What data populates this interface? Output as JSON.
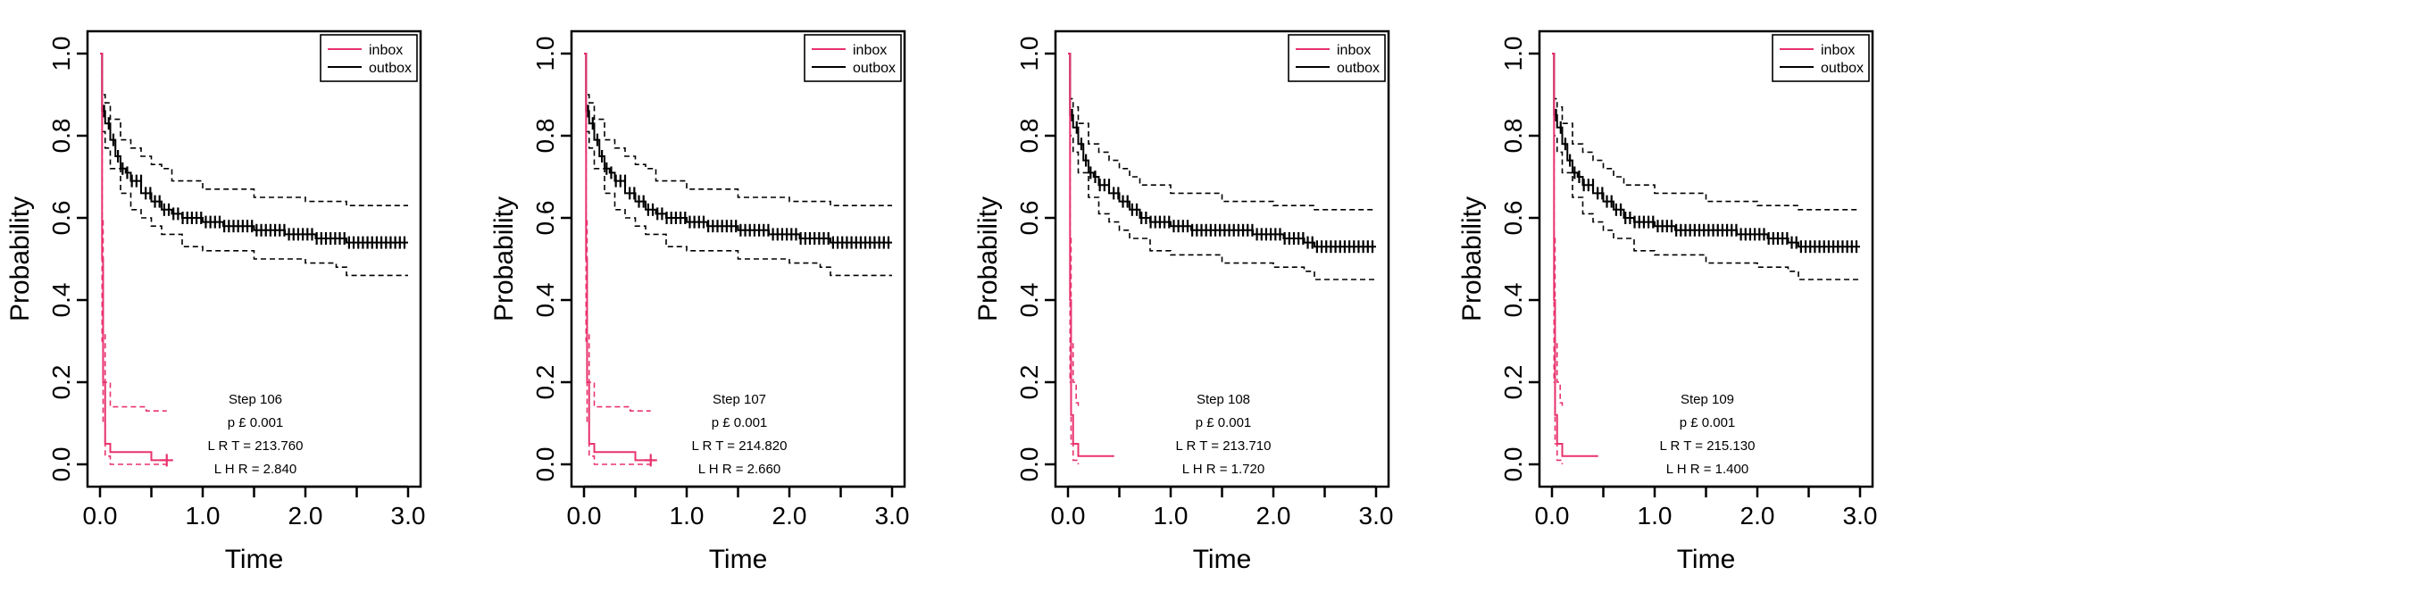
{
  "colors": {
    "inbox": "#e8336d",
    "outbox": "#000000"
  },
  "chart_data": [
    {
      "type": "line",
      "xlabel": "Time",
      "ylabel": "Probability",
      "xlim": [
        0,
        3.0
      ],
      "ylim": [
        0,
        1.0
      ],
      "xticks": [
        "0.0",
        "1.0",
        "2.0",
        "3.0"
      ],
      "yticks": [
        "0.0",
        "0.2",
        "0.4",
        "0.6",
        "0.8",
        "1.0"
      ],
      "grid": false,
      "legend_position": "top-right",
      "legend": [
        "inbox",
        "outbox"
      ],
      "annotation": {
        "step": "Step 106",
        "p": "p £ 0.001",
        "lrt": "L R T = 213.760",
        "lhr": "L H R = 2.840"
      },
      "series": [
        {
          "name": "outbox",
          "style": "solid",
          "x": [
            0,
            0.02,
            0.05,
            0.1,
            0.15,
            0.2,
            0.25,
            0.3,
            0.4,
            0.5,
            0.6,
            0.7,
            0.8,
            1.0,
            1.2,
            1.5,
            1.8,
            2.1,
            2.3,
            2.4,
            3.0
          ],
          "y": [
            1.0,
            0.86,
            0.83,
            0.79,
            0.75,
            0.72,
            0.71,
            0.69,
            0.66,
            0.64,
            0.62,
            0.61,
            0.6,
            0.59,
            0.58,
            0.57,
            0.56,
            0.55,
            0.55,
            0.54,
            0.54
          ]
        },
        {
          "name": "outbox upper",
          "style": "dashed",
          "x": [
            0,
            0.02,
            0.05,
            0.1,
            0.2,
            0.3,
            0.4,
            0.5,
            0.6,
            0.7,
            1.0,
            1.5,
            2.0,
            2.4,
            3.0
          ],
          "y": [
            1.0,
            0.9,
            0.88,
            0.84,
            0.79,
            0.77,
            0.75,
            0.73,
            0.72,
            0.69,
            0.67,
            0.65,
            0.64,
            0.63,
            0.63
          ]
        },
        {
          "name": "outbox lower",
          "style": "dashed",
          "x": [
            0,
            0.02,
            0.05,
            0.1,
            0.2,
            0.3,
            0.4,
            0.5,
            0.6,
            0.8,
            1.0,
            1.5,
            2.0,
            2.3,
            2.4,
            3.0
          ],
          "y": [
            1.0,
            0.81,
            0.77,
            0.72,
            0.66,
            0.62,
            0.6,
            0.58,
            0.56,
            0.53,
            0.52,
            0.5,
            0.49,
            0.48,
            0.46,
            0.46
          ]
        },
        {
          "name": "inbox",
          "style": "solid",
          "x": [
            0,
            0.02,
            0.03,
            0.05,
            0.1,
            0.2,
            0.3,
            0.45,
            0.5,
            0.65
          ],
          "y": [
            1.0,
            0.5,
            0.2,
            0.05,
            0.03,
            0.03,
            0.03,
            0.03,
            0.01,
            0.01
          ]
        },
        {
          "name": "inbox upper",
          "style": "dashed",
          "x": [
            0,
            0.02,
            0.03,
            0.05,
            0.1,
            0.3,
            0.45,
            0.65
          ],
          "y": [
            1.0,
            0.6,
            0.32,
            0.2,
            0.14,
            0.14,
            0.13,
            0.13
          ]
        },
        {
          "name": "inbox lower",
          "style": "dashed",
          "x": [
            0,
            0.02,
            0.03,
            0.05,
            0.1,
            0.3,
            0.5,
            0.65
          ],
          "y": [
            1.0,
            0.3,
            0.1,
            0.02,
            0.0,
            0.0,
            0.0,
            0.0
          ]
        }
      ]
    },
    {
      "type": "line",
      "xlabel": "Time",
      "ylabel": "Probability",
      "xlim": [
        0,
        3.0
      ],
      "ylim": [
        0,
        1.0
      ],
      "xticks": [
        "0.0",
        "1.0",
        "2.0",
        "3.0"
      ],
      "yticks": [
        "0.0",
        "0.2",
        "0.4",
        "0.6",
        "0.8",
        "1.0"
      ],
      "grid": false,
      "legend_position": "top-right",
      "legend": [
        "inbox",
        "outbox"
      ],
      "annotation": {
        "step": "Step 107",
        "p": "p £ 0.001",
        "lrt": "L R T = 214.820",
        "lhr": "L H R = 2.660"
      },
      "series": [
        {
          "name": "outbox",
          "style": "solid",
          "x": [
            0,
            0.02,
            0.05,
            0.1,
            0.15,
            0.2,
            0.25,
            0.3,
            0.4,
            0.5,
            0.6,
            0.7,
            0.8,
            1.0,
            1.2,
            1.5,
            1.8,
            2.1,
            2.3,
            2.4,
            3.0
          ],
          "y": [
            1.0,
            0.86,
            0.83,
            0.79,
            0.75,
            0.72,
            0.71,
            0.69,
            0.66,
            0.64,
            0.62,
            0.61,
            0.6,
            0.59,
            0.58,
            0.57,
            0.56,
            0.55,
            0.55,
            0.54,
            0.54
          ]
        },
        {
          "name": "outbox upper",
          "style": "dashed",
          "x": [
            0,
            0.02,
            0.05,
            0.1,
            0.2,
            0.3,
            0.4,
            0.5,
            0.6,
            0.7,
            1.0,
            1.5,
            2.0,
            2.4,
            3.0
          ],
          "y": [
            1.0,
            0.9,
            0.88,
            0.84,
            0.79,
            0.77,
            0.75,
            0.73,
            0.72,
            0.69,
            0.67,
            0.65,
            0.64,
            0.63,
            0.63
          ]
        },
        {
          "name": "outbox lower",
          "style": "dashed",
          "x": [
            0,
            0.02,
            0.05,
            0.1,
            0.2,
            0.3,
            0.4,
            0.5,
            0.6,
            0.8,
            1.0,
            1.5,
            2.0,
            2.3,
            2.4,
            3.0
          ],
          "y": [
            1.0,
            0.81,
            0.77,
            0.72,
            0.66,
            0.62,
            0.6,
            0.58,
            0.56,
            0.53,
            0.52,
            0.5,
            0.49,
            0.48,
            0.46,
            0.46
          ]
        },
        {
          "name": "inbox",
          "style": "solid",
          "x": [
            0,
            0.02,
            0.03,
            0.05,
            0.1,
            0.2,
            0.3,
            0.45,
            0.5,
            0.65
          ],
          "y": [
            1.0,
            0.5,
            0.2,
            0.05,
            0.03,
            0.03,
            0.03,
            0.03,
            0.01,
            0.01
          ]
        },
        {
          "name": "inbox upper",
          "style": "dashed",
          "x": [
            0,
            0.02,
            0.03,
            0.05,
            0.1,
            0.3,
            0.45,
            0.65
          ],
          "y": [
            1.0,
            0.6,
            0.32,
            0.2,
            0.14,
            0.14,
            0.13,
            0.13
          ]
        },
        {
          "name": "inbox lower",
          "style": "dashed",
          "x": [
            0,
            0.02,
            0.03,
            0.05,
            0.1,
            0.3,
            0.5,
            0.65
          ],
          "y": [
            1.0,
            0.3,
            0.1,
            0.02,
            0.0,
            0.0,
            0.0,
            0.0
          ]
        }
      ]
    },
    {
      "type": "line",
      "xlabel": "Time",
      "ylabel": "Probability",
      "xlim": [
        0,
        3.0
      ],
      "ylim": [
        0,
        1.0
      ],
      "xticks": [
        "0.0",
        "1.0",
        "2.0",
        "3.0"
      ],
      "yticks": [
        "0.0",
        "0.2",
        "0.4",
        "0.6",
        "0.8",
        "1.0"
      ],
      "grid": false,
      "legend_position": "top-right",
      "legend": [
        "inbox",
        "outbox"
      ],
      "annotation": {
        "step": "Step 108",
        "p": "p £ 0.001",
        "lrt": "L R T = 213.710",
        "lhr": "L H R = 1.720"
      },
      "series": [
        {
          "name": "outbox",
          "style": "solid",
          "x": [
            0,
            0.02,
            0.05,
            0.1,
            0.15,
            0.2,
            0.25,
            0.3,
            0.4,
            0.5,
            0.6,
            0.7,
            0.8,
            1.0,
            1.2,
            1.5,
            1.8,
            2.1,
            2.3,
            2.4,
            3.0
          ],
          "y": [
            1.0,
            0.85,
            0.82,
            0.78,
            0.74,
            0.71,
            0.7,
            0.68,
            0.66,
            0.64,
            0.62,
            0.6,
            0.59,
            0.58,
            0.57,
            0.57,
            0.56,
            0.55,
            0.54,
            0.53,
            0.53
          ]
        },
        {
          "name": "outbox upper",
          "style": "dashed",
          "x": [
            0,
            0.02,
            0.05,
            0.1,
            0.2,
            0.3,
            0.4,
            0.5,
            0.6,
            0.7,
            1.0,
            1.5,
            2.0,
            2.4,
            3.0
          ],
          "y": [
            1.0,
            0.89,
            0.87,
            0.83,
            0.78,
            0.76,
            0.74,
            0.72,
            0.7,
            0.68,
            0.66,
            0.64,
            0.63,
            0.62,
            0.62
          ]
        },
        {
          "name": "outbox lower",
          "style": "dashed",
          "x": [
            0,
            0.02,
            0.05,
            0.1,
            0.2,
            0.3,
            0.4,
            0.5,
            0.6,
            0.8,
            1.0,
            1.5,
            2.0,
            2.3,
            2.4,
            3.0
          ],
          "y": [
            1.0,
            0.8,
            0.76,
            0.71,
            0.65,
            0.61,
            0.59,
            0.57,
            0.55,
            0.52,
            0.51,
            0.49,
            0.48,
            0.47,
            0.45,
            0.45
          ]
        },
        {
          "name": "inbox",
          "style": "solid",
          "x": [
            0,
            0.02,
            0.03,
            0.05,
            0.1,
            0.45
          ],
          "y": [
            1.0,
            0.4,
            0.12,
            0.05,
            0.02,
            0.02
          ]
        },
        {
          "name": "inbox upper",
          "style": "dashed",
          "x": [
            0,
            0.02,
            0.03,
            0.05,
            0.08,
            0.1
          ],
          "y": [
            1.0,
            0.55,
            0.3,
            0.2,
            0.15,
            0.14
          ]
        },
        {
          "name": "inbox lower",
          "style": "dashed",
          "x": [
            0,
            0.02,
            0.03,
            0.05,
            0.1
          ],
          "y": [
            1.0,
            0.2,
            0.05,
            0.01,
            0.0
          ]
        }
      ]
    },
    {
      "type": "line",
      "xlabel": "Time",
      "ylabel": "Probability",
      "xlim": [
        0,
        3.0
      ],
      "ylim": [
        0,
        1.0
      ],
      "xticks": [
        "0.0",
        "1.0",
        "2.0",
        "3.0"
      ],
      "yticks": [
        "0.0",
        "0.2",
        "0.4",
        "0.6",
        "0.8",
        "1.0"
      ],
      "grid": false,
      "legend_position": "top-right",
      "legend": [
        "inbox",
        "outbox"
      ],
      "annotation": {
        "step": "Step 109",
        "p": "p £ 0.001",
        "lrt": "L R T = 215.130",
        "lhr": "L H R = 1.400"
      },
      "series": [
        {
          "name": "outbox",
          "style": "solid",
          "x": [
            0,
            0.02,
            0.05,
            0.1,
            0.15,
            0.2,
            0.25,
            0.3,
            0.4,
            0.5,
            0.6,
            0.7,
            0.8,
            1.0,
            1.2,
            1.5,
            1.8,
            2.1,
            2.3,
            2.4,
            3.0
          ],
          "y": [
            1.0,
            0.85,
            0.82,
            0.78,
            0.74,
            0.71,
            0.7,
            0.68,
            0.66,
            0.64,
            0.62,
            0.6,
            0.59,
            0.58,
            0.57,
            0.57,
            0.56,
            0.55,
            0.54,
            0.53,
            0.53
          ]
        },
        {
          "name": "outbox upper",
          "style": "dashed",
          "x": [
            0,
            0.02,
            0.05,
            0.1,
            0.2,
            0.3,
            0.4,
            0.5,
            0.6,
            0.7,
            1.0,
            1.5,
            2.0,
            2.4,
            3.0
          ],
          "y": [
            1.0,
            0.89,
            0.87,
            0.83,
            0.78,
            0.76,
            0.74,
            0.72,
            0.7,
            0.68,
            0.66,
            0.64,
            0.63,
            0.62,
            0.62
          ]
        },
        {
          "name": "outbox lower",
          "style": "dashed",
          "x": [
            0,
            0.02,
            0.05,
            0.1,
            0.2,
            0.3,
            0.4,
            0.5,
            0.6,
            0.8,
            1.0,
            1.5,
            2.0,
            2.3,
            2.4,
            3.0
          ],
          "y": [
            1.0,
            0.8,
            0.76,
            0.71,
            0.65,
            0.61,
            0.59,
            0.57,
            0.55,
            0.52,
            0.51,
            0.49,
            0.48,
            0.47,
            0.45,
            0.45
          ]
        },
        {
          "name": "inbox",
          "style": "solid",
          "x": [
            0,
            0.02,
            0.03,
            0.05,
            0.1,
            0.45
          ],
          "y": [
            1.0,
            0.4,
            0.12,
            0.05,
            0.02,
            0.02
          ]
        },
        {
          "name": "inbox upper",
          "style": "dashed",
          "x": [
            0,
            0.02,
            0.03,
            0.05,
            0.08,
            0.1
          ],
          "y": [
            1.0,
            0.55,
            0.3,
            0.2,
            0.15,
            0.14
          ]
        },
        {
          "name": "inbox lower",
          "style": "dashed",
          "x": [
            0,
            0.02,
            0.03,
            0.05,
            0.1
          ],
          "y": [
            1.0,
            0.2,
            0.05,
            0.01,
            0.0
          ]
        }
      ]
    }
  ]
}
